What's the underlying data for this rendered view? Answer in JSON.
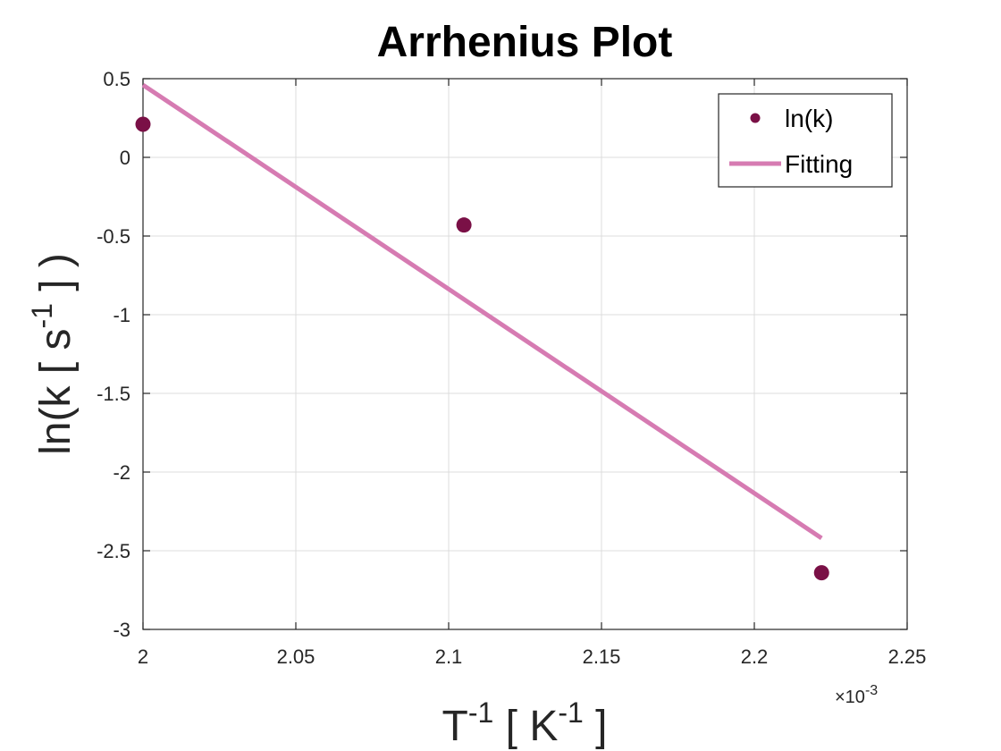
{
  "chart_data": {
    "type": "scatter",
    "title": "Arrhenius Plot",
    "xlabel_base": "T",
    "xlabel_sup": "-1",
    "xlabel_unit_open": " [ K",
    "xlabel_unit_sup": "-1",
    "xlabel_unit_close": " ]",
    "ylabel_base": "ln(k [ s",
    "ylabel_sup": "-1",
    "ylabel_close": " ] )",
    "x_exponent_label": "×10",
    "x_exponent_power": "-3",
    "xlim": [
      2.0,
      2.25
    ],
    "ylim": [
      -3,
      0.5
    ],
    "x_scale_factor": 0.001,
    "xticks": [
      2.0,
      2.05,
      2.1,
      2.15,
      2.2,
      2.25
    ],
    "xtick_labels": [
      "2",
      "2.05",
      "2.1",
      "2.15",
      "2.2",
      "2.25"
    ],
    "yticks": [
      0.5,
      0,
      -0.5,
      -1,
      -1.5,
      -2,
      -2.5,
      -3
    ],
    "ytick_labels": [
      "0.5",
      "0",
      "-0.5",
      "-1",
      "-1.5",
      "-2",
      "-2.5",
      "-3"
    ],
    "grid": true,
    "legend_position": "top-right",
    "series": [
      {
        "name": "ln(k)",
        "kind": "markers",
        "color": "#7a1046",
        "x": [
          2.0,
          2.105,
          2.222
        ],
        "y": [
          0.21,
          -0.43,
          -2.64
        ]
      },
      {
        "name": "Fitting",
        "kind": "line",
        "color": "#d67bb2",
        "x": [
          2.0,
          2.222
        ],
        "y": [
          0.46,
          -2.42
        ]
      }
    ]
  }
}
